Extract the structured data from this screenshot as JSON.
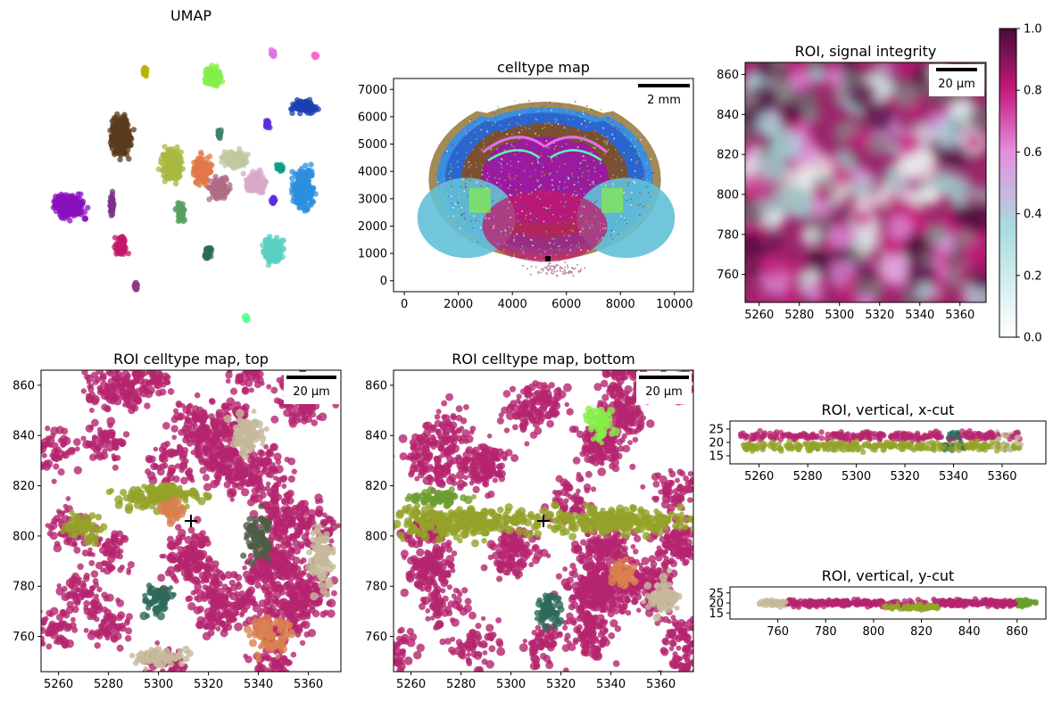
{
  "colors": {
    "magenta": "#b5246e",
    "olive": "#93a328",
    "beige": "#c6b99b",
    "orange": "#d9804f",
    "darkteal": "#2e6a5a",
    "darkgreen": "#4e5c45",
    "green": "#6a9d2f",
    "lime": "#86ee48",
    "blue": "#2a77d8",
    "lightblue": "#5fb2de",
    "brown": "#8b5a2b",
    "purple": "#7a1fa8",
    "yellow": "#b5b300",
    "pink": "#e070e8"
  },
  "chart_data": [
    {
      "id": "umap",
      "type": "scatter",
      "title": "UMAP",
      "axes_visible": false,
      "clusters": [
        {
          "color": "#5b3b1e",
          "cx": 0.27,
          "cy": 0.34,
          "rx": 0.05,
          "ry": 0.1
        },
        {
          "color": "#a8b840",
          "cx": 0.44,
          "cy": 0.44,
          "rx": 0.05,
          "ry": 0.08
        },
        {
          "color": "#e07a4a",
          "cx": 0.54,
          "cy": 0.46,
          "rx": 0.04,
          "ry": 0.07
        },
        {
          "color": "#b06c86",
          "cx": 0.6,
          "cy": 0.52,
          "rx": 0.05,
          "ry": 0.05
        },
        {
          "color": "#d8a8c8",
          "cx": 0.72,
          "cy": 0.5,
          "rx": 0.05,
          "ry": 0.05
        },
        {
          "color": "#c0c8a0",
          "cx": 0.65,
          "cy": 0.42,
          "rx": 0.06,
          "ry": 0.04
        },
        {
          "color": "#8a0fbd",
          "cx": 0.1,
          "cy": 0.58,
          "rx": 0.07,
          "ry": 0.06
        },
        {
          "color": "#2c8fe0",
          "cx": 0.88,
          "cy": 0.52,
          "rx": 0.05,
          "ry": 0.1
        },
        {
          "color": "#1c3fb0",
          "cx": 0.88,
          "cy": 0.24,
          "rx": 0.06,
          "ry": 0.03
        },
        {
          "color": "#59d0c0",
          "cx": 0.78,
          "cy": 0.73,
          "rx": 0.05,
          "ry": 0.06
        },
        {
          "color": "#86ee48",
          "cx": 0.58,
          "cy": 0.14,
          "rx": 0.04,
          "ry": 0.05
        },
        {
          "color": "#c2186b",
          "cx": 0.27,
          "cy": 0.71,
          "rx": 0.03,
          "ry": 0.05
        },
        {
          "color": "#7b2f8a",
          "cx": 0.24,
          "cy": 0.58,
          "rx": 0.01,
          "ry": 0.06
        },
        {
          "color": "#2e6a5a",
          "cx": 0.56,
          "cy": 0.74,
          "rx": 0.02,
          "ry": 0.03
        },
        {
          "color": "#0a9d86",
          "cx": 0.8,
          "cy": 0.45,
          "rx": 0.02,
          "ry": 0.02
        },
        {
          "color": "#5aa060",
          "cx": 0.47,
          "cy": 0.6,
          "rx": 0.02,
          "ry": 0.05
        },
        {
          "color": "#b5b300",
          "cx": 0.35,
          "cy": 0.12,
          "rx": 0.01,
          "ry": 0.02
        },
        {
          "color": "#e070e8",
          "cx": 0.78,
          "cy": 0.06,
          "rx": 0.015,
          "ry": 0.02
        },
        {
          "color": "#5a2ee0",
          "cx": 0.76,
          "cy": 0.3,
          "rx": 0.012,
          "ry": 0.02
        },
        {
          "color": "#5a2ee0",
          "cx": 0.78,
          "cy": 0.56,
          "rx": 0.01,
          "ry": 0.015
        },
        {
          "color": "#ff66cc",
          "cx": 0.92,
          "cy": 0.07,
          "rx": 0.01,
          "ry": 0.01
        },
        {
          "color": "#60ffa0",
          "cx": 0.69,
          "cy": 0.96,
          "rx": 0.01,
          "ry": 0.015
        },
        {
          "color": "#8a3a8a",
          "cx": 0.32,
          "cy": 0.85,
          "rx": 0.008,
          "ry": 0.02
        },
        {
          "color": "#3f7f6f",
          "cx": 0.6,
          "cy": 0.33,
          "rx": 0.01,
          "ry": 0.02
        }
      ]
    },
    {
      "id": "celltype-map",
      "type": "scatter",
      "title": "celltype map",
      "xlim": [
        -400,
        10700
      ],
      "ylim": [
        -400,
        7400
      ],
      "xticks": [
        0,
        2000,
        4000,
        6000,
        8000,
        10000
      ],
      "yticks": [
        0,
        1000,
        2000,
        3000,
        4000,
        5000,
        6000,
        7000
      ],
      "scalebar": "2 mm",
      "roi_marker": [
        5313,
        806
      ]
    },
    {
      "id": "roi-signal",
      "type": "heatmap",
      "title": "ROI, signal integrity",
      "xlim": [
        5253,
        5373
      ],
      "ylim": [
        746,
        866
      ],
      "xticks": [
        5260,
        5280,
        5300,
        5320,
        5340,
        5360
      ],
      "yticks": [
        760,
        780,
        800,
        820,
        840,
        860
      ],
      "scalebar": "20 µm",
      "colorbar": {
        "range": [
          0.0,
          1.0
        ],
        "ticks": [
          "0.0",
          "0.2",
          "0.4",
          "0.6",
          "0.8",
          "1.0"
        ],
        "colormap": [
          "#ffffff",
          "#a9dcdf",
          "#e48fe0",
          "#c51b7d",
          "#4a0a3a"
        ]
      }
    },
    {
      "id": "roi-top",
      "type": "scatter",
      "title": "ROI celltype map, top",
      "xlim": [
        5253,
        5373
      ],
      "ylim": [
        746,
        866
      ],
      "xticks": [
        5260,
        5280,
        5300,
        5320,
        5340,
        5360
      ],
      "yticks": [
        760,
        780,
        800,
        820,
        840,
        860
      ],
      "scalebar": "20 µm",
      "crosshair": [
        5313,
        806
      ]
    },
    {
      "id": "roi-bottom",
      "type": "scatter",
      "title": "ROI celltype map, bottom",
      "xlim": [
        5253,
        5373
      ],
      "ylim": [
        746,
        866
      ],
      "xticks": [
        5260,
        5280,
        5300,
        5320,
        5340,
        5360
      ],
      "yticks": [
        760,
        780,
        800,
        820,
        840,
        860
      ],
      "scalebar": "20 µm",
      "crosshair": [
        5313,
        806
      ]
    },
    {
      "id": "roi-xcut",
      "type": "scatter",
      "title": "ROI, vertical, x-cut",
      "xlim": [
        5248,
        5378
      ],
      "ylim": [
        12,
        28
      ],
      "xticks": [
        5260,
        5280,
        5300,
        5320,
        5340,
        5360
      ],
      "yticks": [
        15,
        20,
        25
      ]
    },
    {
      "id": "roi-ycut",
      "type": "scatter",
      "title": "ROI, vertical, y-cut",
      "xlim": [
        740,
        872
      ],
      "ylim": [
        12,
        28
      ],
      "xticks": [
        760,
        780,
        800,
        820,
        840,
        860
      ],
      "yticks": [
        15,
        20,
        25
      ]
    }
  ]
}
